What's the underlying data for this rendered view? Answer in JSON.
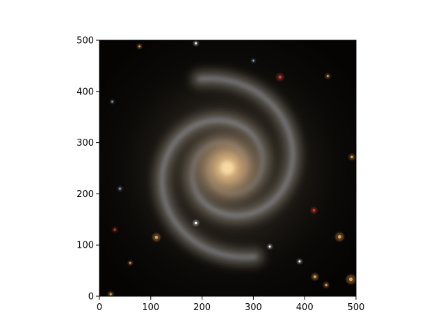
{
  "figure": {
    "background": "#ffffff",
    "image": {
      "description": "",
      "colors": {
        "sky": "#050403",
        "core": "#f0c890",
        "bulge": "#c8a070",
        "arms_inner": "#a08868",
        "arms_outer": "#7f8aa0",
        "hii_blue": "#9fb3d6",
        "star_orange": "#e0a050",
        "star_red": "#d04030",
        "star_white": "#ffffff"
      }
    },
    "axes": {
      "xlim": [
        0,
        500
      ],
      "ylim": [
        0,
        500
      ],
      "x_ticks": [
        "0",
        "100",
        "200",
        "300",
        "400",
        "500"
      ],
      "y_ticks": [
        "0",
        "100",
        "200",
        "300",
        "400",
        "500"
      ],
      "grid": false,
      "frame_color": "#000000"
    },
    "stars": [
      {
        "x": 22,
        "y": 4,
        "r": 2.2,
        "color": "star_orange"
      },
      {
        "x": 30,
        "y": 130,
        "r": 2.0,
        "color": "star_red"
      },
      {
        "x": 111,
        "y": 115,
        "r": 3.2,
        "color": "star_orange"
      },
      {
        "x": 188,
        "y": 143,
        "r": 2.4,
        "color": "star_white"
      },
      {
        "x": 332,
        "y": 97,
        "r": 2.0,
        "color": "star_white"
      },
      {
        "x": 390,
        "y": 68,
        "r": 2.0,
        "color": "star_white"
      },
      {
        "x": 352,
        "y": 428,
        "r": 3.0,
        "color": "star_red"
      },
      {
        "x": 418,
        "y": 168,
        "r": 2.6,
        "color": "star_red"
      },
      {
        "x": 468,
        "y": 116,
        "r": 3.5,
        "color": "star_orange"
      },
      {
        "x": 420,
        "y": 38,
        "r": 2.8,
        "color": "star_orange"
      },
      {
        "x": 490,
        "y": 33,
        "r": 3.8,
        "color": "star_orange"
      },
      {
        "x": 492,
        "y": 272,
        "r": 2.4,
        "color": "star_orange"
      },
      {
        "x": 442,
        "y": 22,
        "r": 2.2,
        "color": "star_orange"
      },
      {
        "x": 78,
        "y": 488,
        "r": 2.0,
        "color": "star_orange"
      },
      {
        "x": 188,
        "y": 494,
        "r": 2.0,
        "color": "star_white"
      },
      {
        "x": 445,
        "y": 430,
        "r": 2.0,
        "color": "star_orange"
      },
      {
        "x": 40,
        "y": 210,
        "r": 1.8,
        "color": "hii_blue"
      },
      {
        "x": 60,
        "y": 65,
        "r": 1.8,
        "color": "star_orange"
      },
      {
        "x": 25,
        "y": 380,
        "r": 1.6,
        "color": "hii_blue"
      },
      {
        "x": 300,
        "y": 460,
        "r": 1.6,
        "color": "hii_blue"
      }
    ]
  }
}
